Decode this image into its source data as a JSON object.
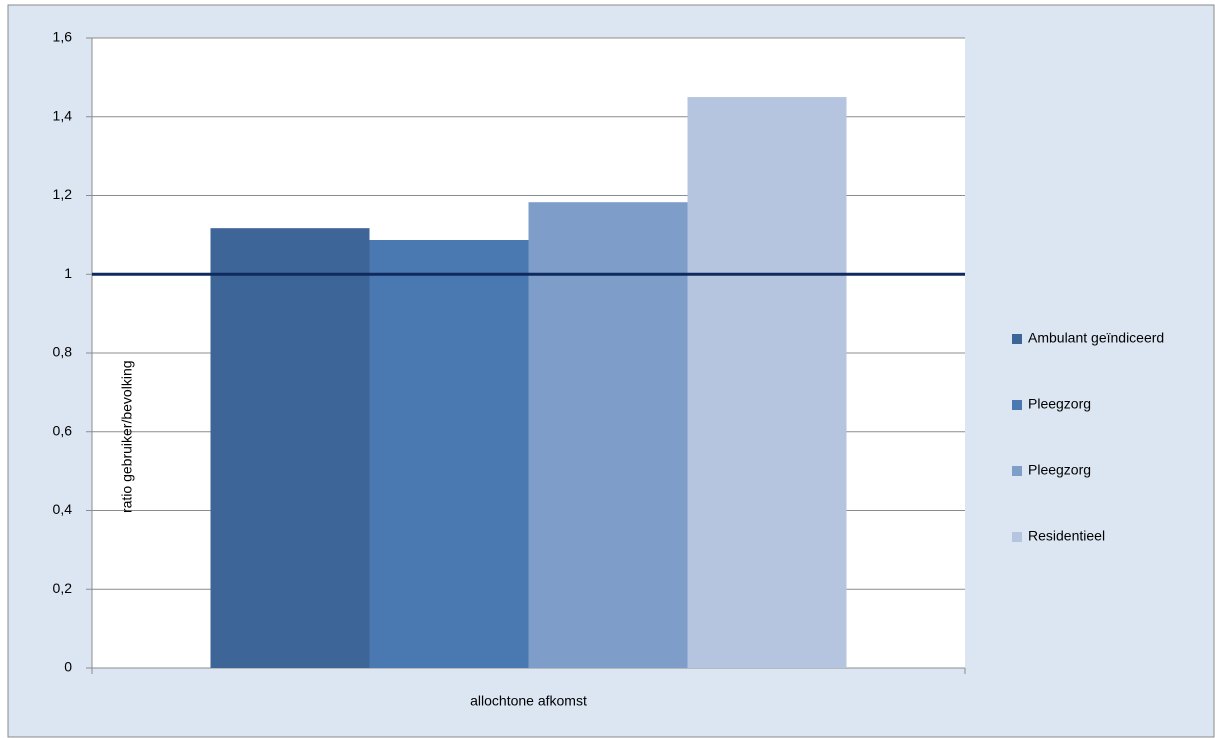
{
  "chart_data": {
    "type": "bar",
    "y_label": "ratio gebruiker/bevolking",
    "categories": [
      "allochtone afkomst"
    ],
    "series": [
      {
        "name": "Ambulant geïndiceerd",
        "color": "#3d6597",
        "values": [
          1.117
        ]
      },
      {
        "name": "Pleegzorg",
        "color": "#4a79b1",
        "values": [
          1.087
        ]
      },
      {
        "name": "Pleegzorg",
        "color": "#7f9dc9",
        "values": [
          1.183
        ]
      },
      {
        "name": "Residentieel",
        "color": "#b5c4df",
        "values": [
          1.45
        ]
      }
    ],
    "reference_line": 1,
    "ylim": [
      0,
      1.6
    ],
    "yticks": [
      0,
      {
        "value": 0.2,
        "label": "0,2"
      },
      {
        "value": 0.4,
        "label": "0,4"
      },
      {
        "value": 0.6,
        "label": "0,6"
      },
      {
        "value": 0.8,
        "label": "0,8"
      },
      1,
      {
        "value": 1.2,
        "label": "1,2"
      },
      {
        "value": 1.4,
        "label": "1,4"
      },
      {
        "value": 1.6,
        "label": "1,6"
      }
    ],
    "grid": true,
    "legend": "right"
  }
}
